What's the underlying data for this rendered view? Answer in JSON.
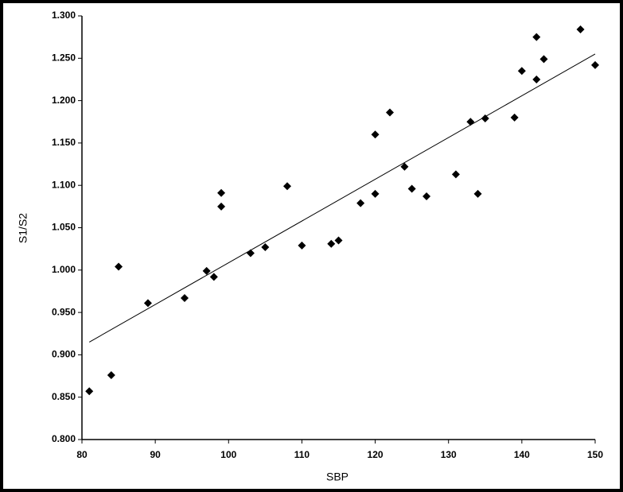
{
  "chart_data": {
    "type": "scatter",
    "x_label": "SBP",
    "y_label": "S1/S2",
    "color": "#000000",
    "x": [
      81,
      84,
      85,
      89,
      94,
      97,
      98,
      99,
      99,
      103,
      105,
      108,
      110,
      114,
      115,
      118,
      120,
      120,
      122,
      124,
      125,
      127,
      131,
      133,
      134,
      135,
      139,
      140,
      142,
      142,
      143,
      148,
      150
    ],
    "values": [
      0.857,
      0.876,
      1.004,
      0.961,
      0.967,
      0.999,
      0.992,
      1.091,
      1.075,
      1.02,
      1.027,
      1.099,
      1.029,
      1.031,
      1.035,
      1.079,
      1.16,
      1.09,
      1.186,
      1.122,
      1.096,
      1.087,
      1.113,
      1.175,
      1.09,
      1.179,
      1.18,
      1.235,
      1.275,
      1.225,
      1.249,
      1.284,
      1.242
    ],
    "trendline": {
      "x": [
        81,
        150
      ],
      "y": [
        0.915,
        1.255
      ]
    },
    "xlim": [
      80,
      150
    ],
    "xticks": [
      80,
      90,
      100,
      110,
      120,
      130,
      140,
      150
    ],
    "ylim": [
      0.8,
      1.3
    ],
    "yticks": [
      {
        "value": 0.8,
        "label": "0.800"
      },
      {
        "value": 0.85,
        "label": "0.850"
      },
      {
        "value": 0.9,
        "label": "0.900"
      },
      {
        "value": 0.95,
        "label": "0.950"
      },
      {
        "value": 1.0,
        "label": "1.000"
      },
      {
        "value": 1.05,
        "label": "1.050"
      },
      {
        "value": 1.1,
        "label": "1.100"
      },
      {
        "value": 1.15,
        "label": "1.150"
      },
      {
        "value": 1.2,
        "label": "1.200"
      },
      {
        "value": 1.25,
        "label": "1.250"
      },
      {
        "value": 1.3,
        "label": "1.300"
      }
    ],
    "grid": false
  }
}
